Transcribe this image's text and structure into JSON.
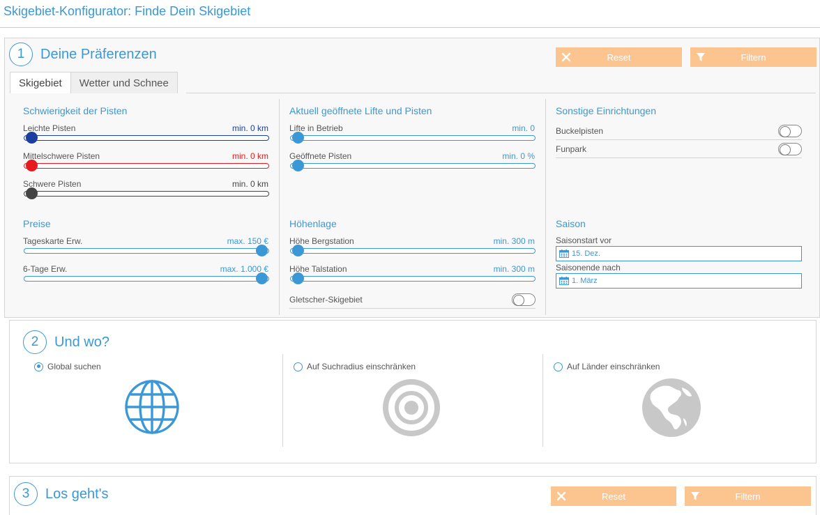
{
  "header": {
    "title": "Skigebiet-Konfigurator: Finde Dein Skigebiet"
  },
  "step1": {
    "number": "1",
    "title": "Deine Präferenzen",
    "reset_label": "Reset",
    "filter_label": "Filtern",
    "tabs": [
      {
        "label": "Skigebiet",
        "active": true
      },
      {
        "label": "Wetter und Schnee",
        "active": false
      }
    ],
    "difficulty": {
      "title": "Schwierigkeit der Pisten",
      "sliders": [
        {
          "label": "Leichte Pisten",
          "value": "min. 0 km",
          "color": "#1a3fa0"
        },
        {
          "label": "Mittelschwere Pisten",
          "value": "min. 0 km",
          "color": "#e8191e"
        },
        {
          "label": "Schwere Pisten",
          "value": "min. 0 km",
          "color": "#444444"
        }
      ]
    },
    "open": {
      "title": "Aktuell geöffnete Lifte und Pisten",
      "sliders": [
        {
          "label": "Lifte in Betrieb",
          "value": "min. 0"
        },
        {
          "label": "Geöffnete Pisten",
          "value": "min. 0 %"
        }
      ]
    },
    "facilities": {
      "title": "Sonstige Einrichtungen",
      "toggles": [
        {
          "label": "Buckelpisten",
          "on": false
        },
        {
          "label": "Funpark",
          "on": false
        }
      ]
    },
    "prices": {
      "title": "Preise",
      "sliders": [
        {
          "label": "Tageskarte Erw.",
          "value": "max. 150 €"
        },
        {
          "label": "6-Tage Erw.",
          "value": "max. 1.000 €"
        }
      ]
    },
    "altitude": {
      "title": "Höhenlage",
      "sliders": [
        {
          "label": "Höhe Bergstation",
          "value": "min. 300 m"
        },
        {
          "label": "Höhe Talstation",
          "value": "min. 300 m"
        }
      ],
      "glacier_label": "Gletscher-Skigebiet"
    },
    "season": {
      "title": "Saison",
      "start_label": "Saisonstart vor",
      "start_value": "15. Dez.",
      "end_label": "Saisonende nach",
      "end_value": "1. März"
    }
  },
  "step2": {
    "number": "2",
    "title": "Und wo?",
    "options": [
      {
        "label": "Global suchen",
        "selected": true,
        "icon": "globe-grid-icon"
      },
      {
        "label": "Auf Suchradius einschränken",
        "selected": false,
        "icon": "target-icon"
      },
      {
        "label": "Auf Länder einschränken",
        "selected": false,
        "icon": "earth-americas-icon"
      }
    ]
  },
  "step3": {
    "number": "3",
    "title": "Los geht's",
    "reset_label": "Reset",
    "filter_label": "Filtern"
  },
  "colors": {
    "accent": "#3b98d6",
    "button": "#fcc48e",
    "gray_icon": "#c8c8c8"
  }
}
